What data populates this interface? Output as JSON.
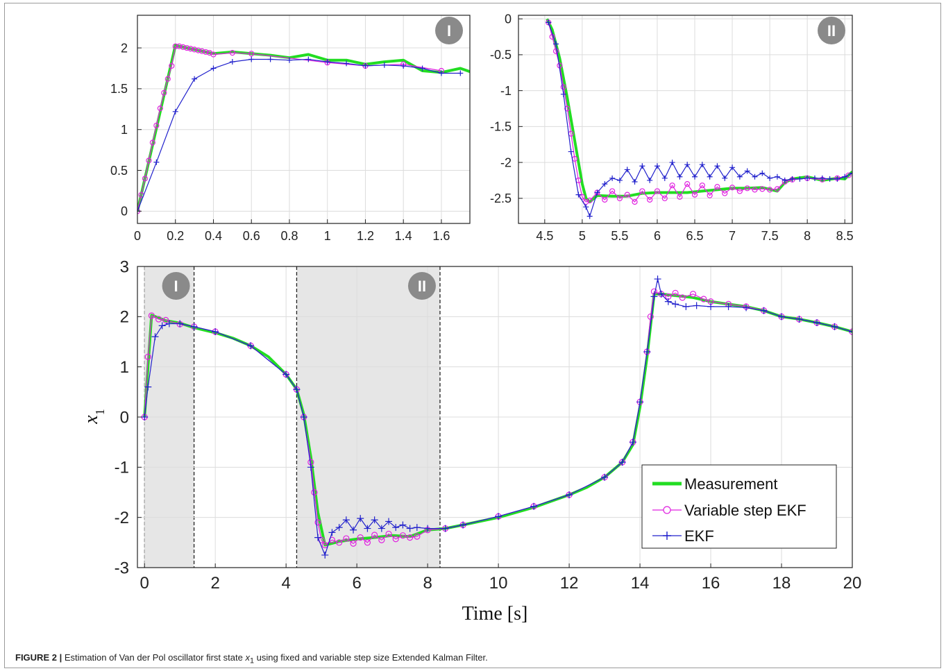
{
  "caption": {
    "label": "FIGURE 2 |",
    "text_before": "Estimation of Van der Pol oscillator first state",
    "symbol": "x",
    "subscript": "1",
    "text_after": "using fixed and variable step size Extended Kalman Filter."
  },
  "colors": {
    "measurement": "#22dd22",
    "variable_step": "#e020e0",
    "ekf": "#2020cc",
    "highlight": "#e6e6e6",
    "badge": "#8a8a8a"
  },
  "chart_data": [
    {
      "id": "inset_I",
      "type": "line",
      "badge": "I",
      "xlim": [
        0,
        1.75
      ],
      "ylim": [
        -0.15,
        2.4
      ],
      "xticks": [
        0,
        0.2,
        0.4,
        0.6,
        0.8,
        1,
        1.2,
        1.4,
        1.6
      ],
      "yticks": [
        0,
        0.5,
        1,
        1.5,
        2
      ],
      "grid": true,
      "series": [
        {
          "name": "Measurement",
          "x": [
            0,
            0.2,
            0.4,
            0.5,
            0.6,
            0.7,
            0.8,
            0.9,
            1.0,
            1.1,
            1.2,
            1.3,
            1.4,
            1.5,
            1.6,
            1.7,
            1.75
          ],
          "y": [
            0,
            2.03,
            1.93,
            1.95,
            1.93,
            1.91,
            1.88,
            1.92,
            1.85,
            1.85,
            1.8,
            1.83,
            1.85,
            1.72,
            1.7,
            1.75,
            1.71
          ]
        },
        {
          "name": "Variable step EKF",
          "x": [
            0,
            0.02,
            0.04,
            0.06,
            0.08,
            0.1,
            0.12,
            0.14,
            0.16,
            0.18,
            0.2,
            0.22,
            0.24,
            0.26,
            0.28,
            0.3,
            0.32,
            0.34,
            0.36,
            0.38,
            0.4,
            0.5,
            0.6,
            1.0,
            1.2,
            1.4,
            1.6
          ],
          "y": [
            0,
            0.2,
            0.4,
            0.62,
            0.84,
            1.05,
            1.26,
            1.45,
            1.62,
            1.78,
            2.02,
            2.02,
            2.01,
            2.0,
            1.99,
            1.98,
            1.97,
            1.96,
            1.95,
            1.94,
            1.92,
            1.94,
            1.93,
            1.82,
            1.78,
            1.8,
            1.72
          ]
        },
        {
          "name": "EKF",
          "x": [
            0,
            0.1,
            0.2,
            0.3,
            0.4,
            0.5,
            0.6,
            0.7,
            0.8,
            0.9,
            1.0,
            1.1,
            1.2,
            1.3,
            1.4,
            1.5,
            1.6,
            1.7
          ],
          "y": [
            0,
            0.6,
            1.22,
            1.62,
            1.75,
            1.83,
            1.86,
            1.86,
            1.85,
            1.86,
            1.83,
            1.81,
            1.78,
            1.79,
            1.78,
            1.75,
            1.69,
            1.69
          ]
        }
      ]
    },
    {
      "id": "inset_II",
      "type": "line",
      "badge": "II",
      "xlim": [
        4.15,
        8.6
      ],
      "ylim": [
        -2.85,
        0.05
      ],
      "xticks": [
        4.5,
        5,
        5.5,
        6,
        6.5,
        7,
        7.5,
        8,
        8.5
      ],
      "yticks": [
        0,
        -0.5,
        -1,
        -1.5,
        -2,
        -2.5
      ],
      "grid": true,
      "series": [
        {
          "name": "Measurement",
          "x": [
            4.53,
            4.6,
            4.7,
            4.8,
            4.9,
            5.0,
            5.05,
            5.1,
            5.2,
            5.4,
            5.6,
            5.8,
            6.0,
            6.2,
            6.4,
            6.6,
            6.8,
            7.0,
            7.2,
            7.4,
            7.6,
            7.7,
            7.8,
            8.0,
            8.2,
            8.4,
            8.5,
            8.6
          ],
          "y": [
            0,
            -0.15,
            -0.55,
            -1.1,
            -1.7,
            -2.3,
            -2.5,
            -2.55,
            -2.46,
            -2.47,
            -2.47,
            -2.43,
            -2.42,
            -2.42,
            -2.42,
            -2.4,
            -2.38,
            -2.36,
            -2.36,
            -2.35,
            -2.4,
            -2.28,
            -2.23,
            -2.2,
            -2.25,
            -2.22,
            -2.23,
            -2.13
          ]
        },
        {
          "name": "Variable step EKF",
          "x": [
            4.55,
            4.6,
            4.65,
            4.7,
            4.75,
            4.8,
            4.85,
            4.9,
            4.95,
            5.0,
            5.05,
            5.1,
            5.2,
            5.3,
            5.4,
            5.5,
            5.6,
            5.7,
            5.8,
            5.9,
            6.0,
            6.1,
            6.2,
            6.3,
            6.4,
            6.5,
            6.6,
            6.7,
            6.8,
            6.9,
            7.0,
            7.1,
            7.2,
            7.3,
            7.4,
            7.5,
            7.6,
            7.7,
            7.8,
            8.0,
            8.2,
            8.4,
            8.55
          ],
          "y": [
            -0.05,
            -0.25,
            -0.45,
            -0.65,
            -0.95,
            -1.25,
            -1.6,
            -1.95,
            -2.25,
            -2.48,
            -2.55,
            -2.53,
            -2.42,
            -2.52,
            -2.4,
            -2.5,
            -2.45,
            -2.55,
            -2.4,
            -2.52,
            -2.4,
            -2.5,
            -2.32,
            -2.48,
            -2.3,
            -2.45,
            -2.32,
            -2.46,
            -2.34,
            -2.43,
            -2.35,
            -2.4,
            -2.36,
            -2.38,
            -2.37,
            -2.38,
            -2.37,
            -2.27,
            -2.24,
            -2.22,
            -2.24,
            -2.22,
            -2.18
          ]
        },
        {
          "name": "EKF",
          "x": [
            4.55,
            4.65,
            4.75,
            4.85,
            4.95,
            5.05,
            5.1,
            5.2,
            5.3,
            5.4,
            5.5,
            5.6,
            5.7,
            5.8,
            5.9,
            6.0,
            6.1,
            6.2,
            6.3,
            6.4,
            6.5,
            6.6,
            6.7,
            6.8,
            6.9,
            7.0,
            7.1,
            7.2,
            7.3,
            7.4,
            7.5,
            7.6,
            7.7,
            7.8,
            7.9,
            8.0,
            8.1,
            8.2,
            8.3,
            8.4,
            8.5,
            8.6
          ],
          "y": [
            -0.05,
            -0.35,
            -1.05,
            -1.85,
            -2.45,
            -2.62,
            -2.75,
            -2.42,
            -2.3,
            -2.22,
            -2.25,
            -2.1,
            -2.27,
            -2.05,
            -2.25,
            -2.05,
            -2.22,
            -2.0,
            -2.2,
            -2.03,
            -2.2,
            -2.03,
            -2.2,
            -2.05,
            -2.22,
            -2.07,
            -2.2,
            -2.12,
            -2.2,
            -2.15,
            -2.22,
            -2.2,
            -2.25,
            -2.23,
            -2.23,
            -2.22,
            -2.22,
            -2.22,
            -2.23,
            -2.23,
            -2.2,
            -2.15
          ]
        }
      ]
    },
    {
      "id": "main",
      "type": "line",
      "xlabel": "Time [s]",
      "ylabel": "x",
      "ylabel_sub": "1",
      "xlim": [
        -0.2,
        20
      ],
      "ylim": [
        -3,
        3
      ],
      "xticks": [
        0,
        2,
        4,
        6,
        8,
        10,
        12,
        14,
        16,
        18,
        20
      ],
      "yticks": [
        3,
        2,
        1,
        0,
        -1,
        -2,
        -3
      ],
      "grid": true,
      "legend_position": "bottom-right",
      "regions": [
        {
          "badge": "I",
          "x0": 0,
          "x1": 1.4
        },
        {
          "badge": "II",
          "x0": 4.3,
          "x1": 8.35
        }
      ],
      "series": [
        {
          "name": "Measurement",
          "x": [
            0,
            0.2,
            0.6,
            1.0,
            1.4,
            2.0,
            2.5,
            3.0,
            3.5,
            4.0,
            4.3,
            4.5,
            4.7,
            4.9,
            5.1,
            5.5,
            6.0,
            6.5,
            7.0,
            7.5,
            8.0,
            8.5,
            9.0,
            10.0,
            11.0,
            12.0,
            12.5,
            13.0,
            13.5,
            13.8,
            14.0,
            14.2,
            14.4,
            14.6,
            15.0,
            15.5,
            16.0,
            16.5,
            17.0,
            17.5,
            18.0,
            18.5,
            19.0,
            19.5,
            20.0
          ],
          "y": [
            0,
            2.03,
            1.92,
            1.87,
            1.78,
            1.68,
            1.57,
            1.42,
            1.2,
            0.85,
            0.55,
            0.05,
            -0.8,
            -1.9,
            -2.55,
            -2.48,
            -2.43,
            -2.4,
            -2.36,
            -2.38,
            -2.25,
            -2.22,
            -2.15,
            -2.0,
            -1.8,
            -1.55,
            -1.4,
            -1.2,
            -0.9,
            -0.55,
            0.2,
            1.2,
            2.45,
            2.45,
            2.42,
            2.38,
            2.3,
            2.25,
            2.2,
            2.12,
            2.0,
            1.95,
            1.88,
            1.8,
            1.7
          ]
        },
        {
          "name": "Variable step EKF",
          "x": [
            0,
            0.1,
            0.2,
            0.4,
            0.6,
            1.0,
            1.4,
            2.0,
            3.0,
            4.0,
            4.3,
            4.5,
            4.7,
            4.8,
            4.9,
            5.0,
            5.1,
            5.3,
            5.5,
            5.7,
            5.9,
            6.1,
            6.3,
            6.5,
            6.7,
            6.9,
            7.1,
            7.3,
            7.5,
            7.7,
            8.0,
            8.5,
            9.0,
            10.0,
            11.0,
            12.0,
            13.0,
            13.5,
            13.8,
            14.0,
            14.2,
            14.3,
            14.4,
            14.6,
            14.8,
            15.0,
            15.2,
            15.5,
            15.8,
            16.0,
            16.5,
            17.0,
            17.5,
            18.0,
            18.5,
            19.0,
            19.5,
            20.0
          ],
          "y": [
            0,
            1.2,
            2.02,
            1.95,
            1.93,
            1.85,
            1.8,
            1.7,
            1.42,
            0.85,
            0.55,
            0.0,
            -0.9,
            -1.5,
            -2.1,
            -2.45,
            -2.55,
            -2.45,
            -2.5,
            -2.42,
            -2.52,
            -2.4,
            -2.5,
            -2.35,
            -2.45,
            -2.33,
            -2.43,
            -2.36,
            -2.4,
            -2.38,
            -2.25,
            -2.22,
            -2.15,
            -1.98,
            -1.78,
            -1.55,
            -1.2,
            -0.9,
            -0.5,
            0.3,
            1.3,
            2.0,
            2.5,
            2.45,
            2.4,
            2.47,
            2.38,
            2.45,
            2.35,
            2.3,
            2.25,
            2.2,
            2.12,
            2.0,
            1.95,
            1.88,
            1.8,
            1.7
          ]
        },
        {
          "name": "EKF",
          "x": [
            0,
            0.1,
            0.3,
            0.5,
            0.7,
            1.0,
            1.4,
            2.0,
            3.0,
            4.0,
            4.3,
            4.5,
            4.7,
            4.9,
            5.1,
            5.3,
            5.5,
            5.7,
            5.9,
            6.1,
            6.3,
            6.5,
            6.7,
            6.9,
            7.1,
            7.3,
            7.5,
            7.7,
            8.0,
            8.5,
            9.0,
            10.0,
            11.0,
            12.0,
            13.0,
            13.5,
            13.8,
            14.0,
            14.2,
            14.4,
            14.5,
            14.6,
            14.8,
            15.0,
            15.3,
            15.6,
            16.0,
            16.5,
            17.0,
            17.5,
            18.0,
            18.5,
            19.0,
            19.5,
            20.0
          ],
          "y": [
            0,
            0.6,
            1.6,
            1.82,
            1.86,
            1.86,
            1.8,
            1.7,
            1.42,
            0.85,
            0.55,
            0.0,
            -1.0,
            -2.4,
            -2.75,
            -2.3,
            -2.2,
            -2.05,
            -2.25,
            -2.02,
            -2.22,
            -2.05,
            -2.22,
            -2.08,
            -2.2,
            -2.15,
            -2.22,
            -2.2,
            -2.22,
            -2.22,
            -2.15,
            -1.98,
            -1.78,
            -1.55,
            -1.2,
            -0.9,
            -0.5,
            0.3,
            1.3,
            2.4,
            2.75,
            2.45,
            2.3,
            2.25,
            2.2,
            2.22,
            2.2,
            2.2,
            2.18,
            2.12,
            2.0,
            1.95,
            1.88,
            1.8,
            1.7
          ]
        }
      ]
    }
  ]
}
